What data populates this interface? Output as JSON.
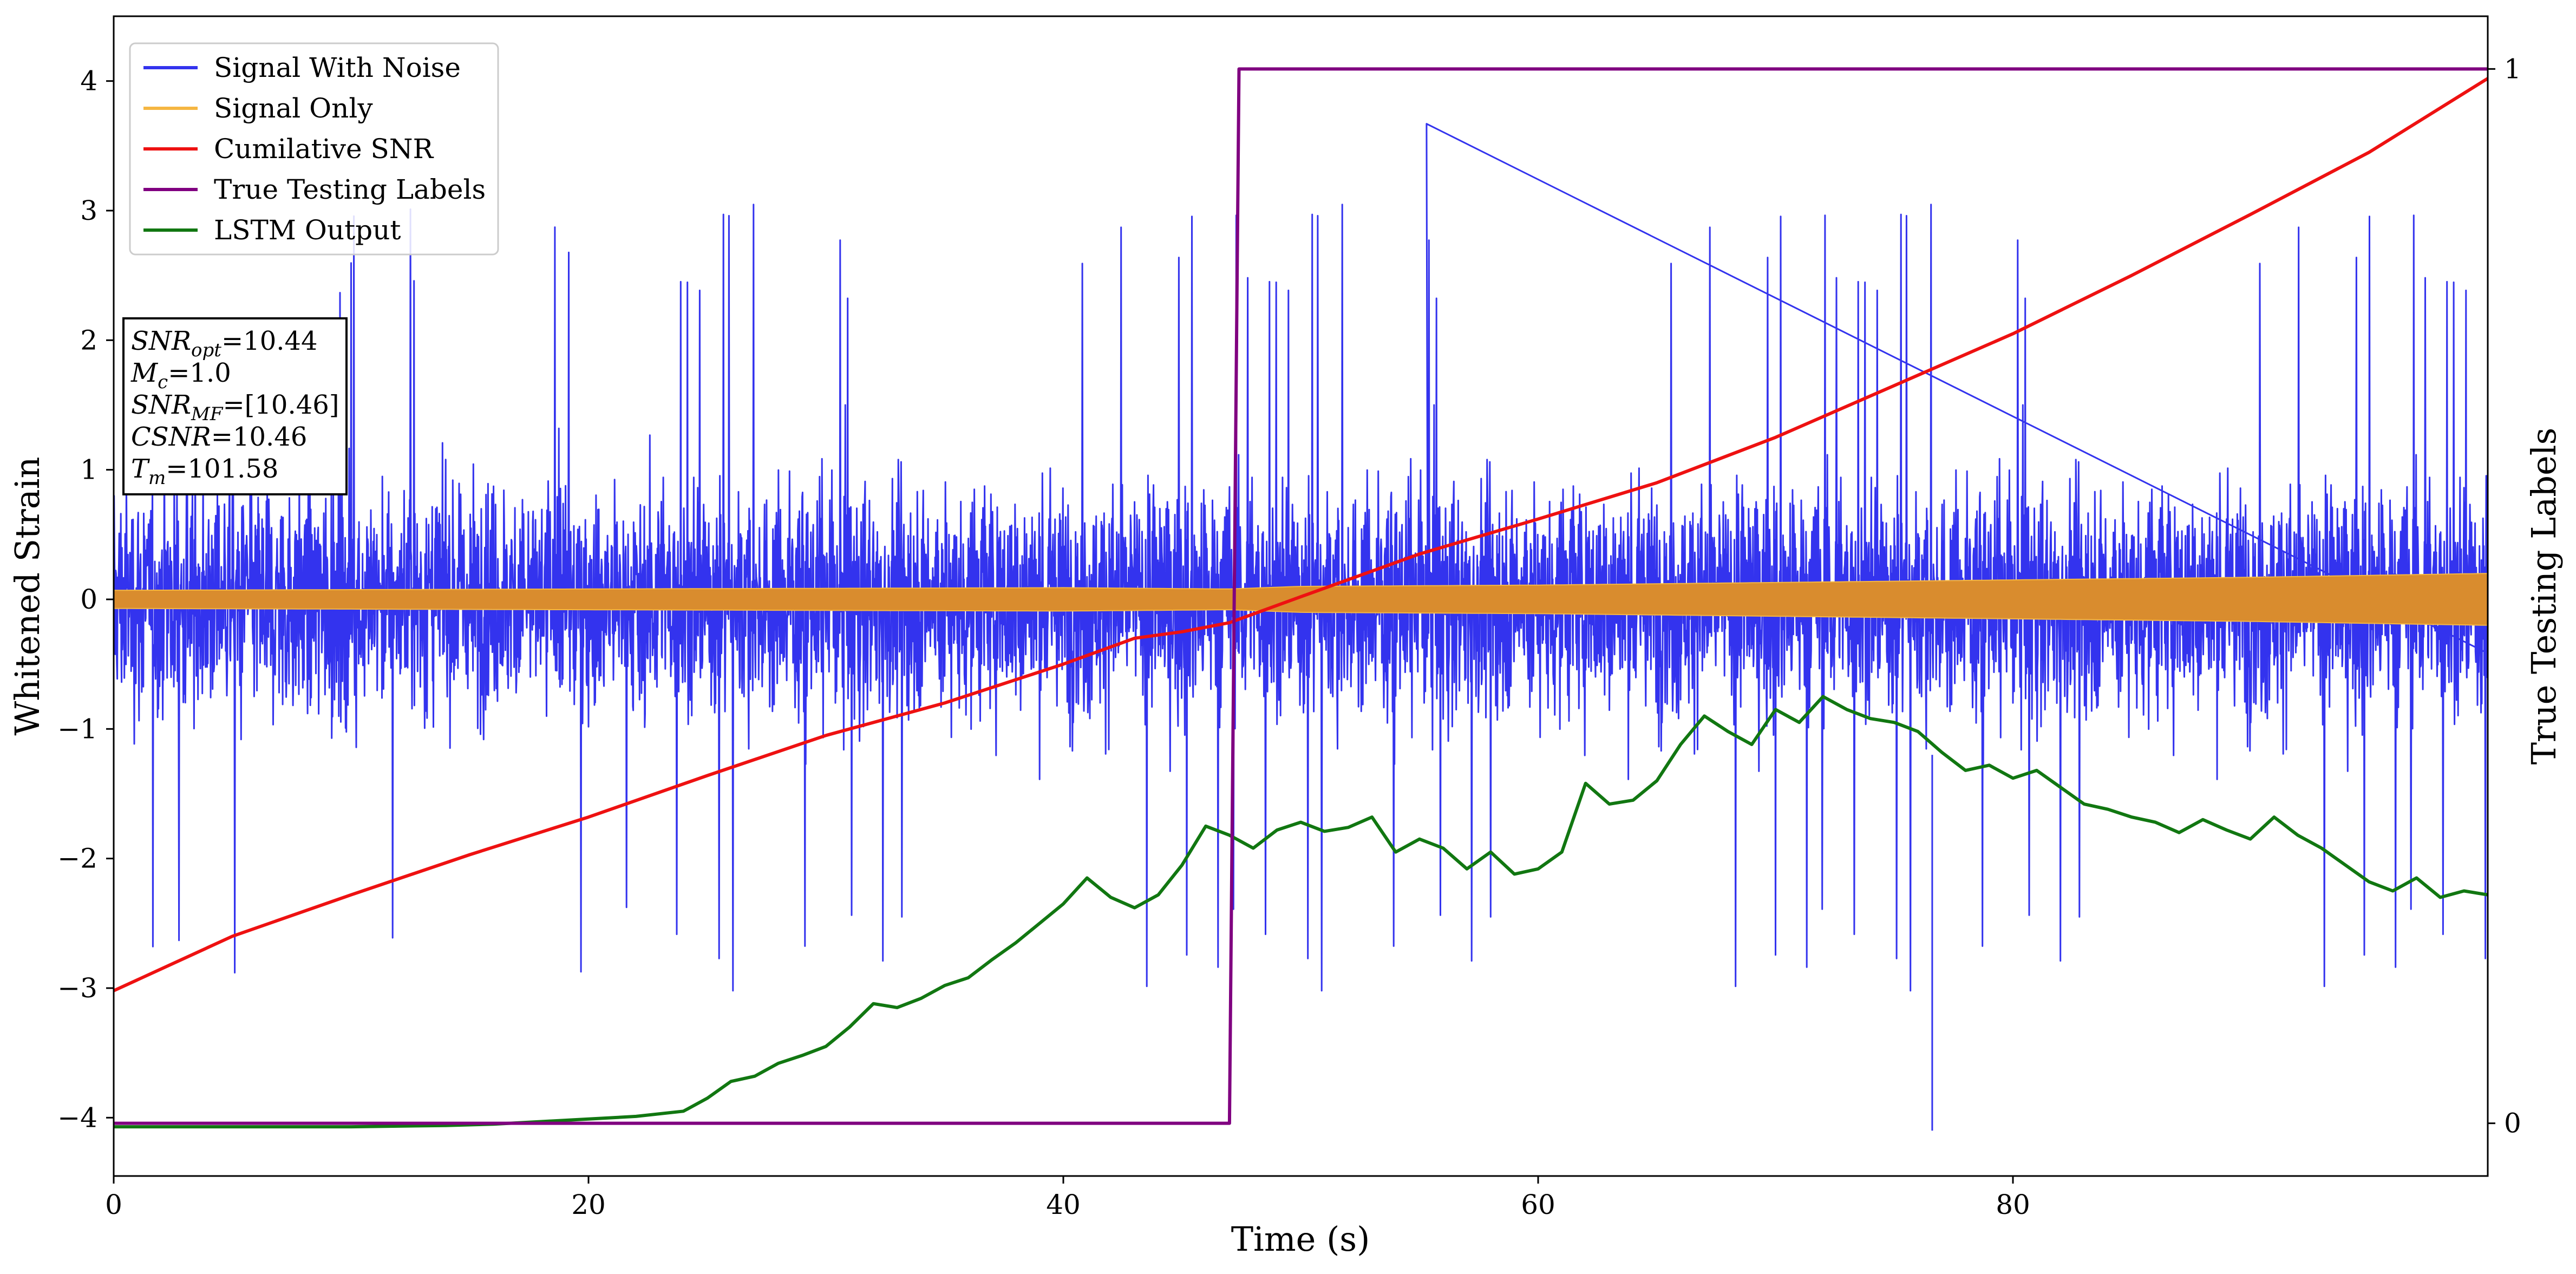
{
  "chart_data": {
    "type": "line",
    "xlabel": "Time (s)",
    "ylabel_left": "Whitened Strain",
    "ylabel_right": "True Testing Labels",
    "xlim": [
      0,
      100
    ],
    "ylim_left": [
      -4.45,
      4.5
    ],
    "ylim_right": [
      -0.05,
      1.05
    ],
    "x_ticks": [
      0,
      20,
      40,
      60,
      80
    ],
    "y_ticks_left": [
      -4,
      -3,
      -2,
      -1,
      0,
      1,
      2,
      3,
      4
    ],
    "y_ticks_right": [
      0,
      1
    ],
    "legend_position": "upper-left",
    "legend": [
      {
        "name": "Signal With Noise",
        "color": "#3333ee"
      },
      {
        "name": "Signal Only",
        "color": "#f5b642"
      },
      {
        "name": "Cumilative SNR",
        "color": "#ee1111"
      },
      {
        "name": "True Testing Labels",
        "color": "#800080"
      },
      {
        "name": "LSTM Output",
        "color": "#117711"
      }
    ],
    "annotation": [
      {
        "base": "SNR",
        "sub": "opt",
        "rest": "=10.44"
      },
      {
        "base": "M",
        "sub": "c",
        "rest": "=1.0"
      },
      {
        "base": "SNR",
        "sub": "MF",
        "rest": "=[10.46]"
      },
      {
        "base": "CSNR",
        "sub": "",
        "rest": "=10.46"
      },
      {
        "base": "T",
        "sub": "m",
        "rest": "=101.58"
      }
    ],
    "series": {
      "signal_with_noise": {
        "description": "whitened noisy strain, dense oscillation approximately spanning -2.5 to 2.5 with spikes",
        "max_spike": 3.67,
        "min_spike": -4.1
      },
      "signal_only": {
        "envelope_x": [
          0,
          20,
          40,
          47,
          50,
          60,
          70,
          80,
          90,
          100
        ],
        "envelope_half_width": [
          0.07,
          0.08,
          0.09,
          0.08,
          0.1,
          0.11,
          0.13,
          0.15,
          0.17,
          0.2
        ]
      },
      "cumulative_snr": {
        "x": [
          0,
          5,
          10,
          15,
          20,
          25,
          30,
          35,
          40,
          43,
          45,
          47,
          50,
          55,
          60,
          65,
          70,
          75,
          80,
          85,
          90,
          95,
          100
        ],
        "y": [
          -3.02,
          -2.6,
          -2.28,
          -1.97,
          -1.68,
          -1.36,
          -1.05,
          -0.8,
          -0.5,
          -0.3,
          -0.25,
          -0.18,
          0.02,
          0.35,
          0.62,
          0.9,
          1.25,
          1.65,
          2.05,
          2.5,
          2.97,
          3.45,
          4.02
        ]
      },
      "true_testing_labels": {
        "x": [
          0,
          47.0,
          47.4,
          100
        ],
        "y": [
          0,
          0,
          1,
          1
        ]
      },
      "lstm_output": {
        "x": [
          0,
          10,
          14,
          16,
          18,
          20,
          22,
          24,
          25,
          26,
          27,
          28,
          29,
          30,
          31,
          32,
          33,
          34,
          35,
          36,
          37,
          38,
          39,
          40,
          41,
          42,
          43,
          44,
          45,
          46,
          47,
          48,
          49,
          50,
          51,
          52,
          53,
          54,
          55,
          56,
          57,
          58,
          59,
          60,
          61,
          62,
          63,
          64,
          65,
          66,
          67,
          68,
          69,
          70,
          71,
          72,
          73,
          74,
          75,
          76,
          77,
          78,
          79,
          80,
          81,
          82,
          83,
          84,
          85,
          86,
          87,
          88,
          89,
          90,
          91,
          92,
          93,
          94,
          95,
          96,
          97,
          98,
          99,
          100
        ],
        "y": [
          -4.07,
          -4.07,
          -4.06,
          -4.05,
          -4.03,
          -4.01,
          -3.99,
          -3.95,
          -3.85,
          -3.72,
          -3.68,
          -3.58,
          -3.52,
          -3.45,
          -3.3,
          -3.12,
          -3.15,
          -3.08,
          -2.98,
          -2.92,
          -2.78,
          -2.65,
          -2.5,
          -2.35,
          -2.15,
          -2.3,
          -2.38,
          -2.28,
          -2.05,
          -1.75,
          -1.82,
          -1.92,
          -1.78,
          -1.72,
          -1.79,
          -1.76,
          -1.68,
          -1.95,
          -1.85,
          -1.92,
          -2.08,
          -1.95,
          -2.12,
          -2.08,
          -1.95,
          -1.42,
          -1.58,
          -1.55,
          -1.4,
          -1.12,
          -0.9,
          -1.02,
          -1.12,
          -0.85,
          -0.95,
          -0.75,
          -0.85,
          -0.92,
          -0.95,
          -1.02,
          -1.18,
          -1.32,
          -1.28,
          -1.38,
          -1.32,
          -1.45,
          -1.58,
          -1.62,
          -1.68,
          -1.72,
          -1.8,
          -1.7,
          -1.78,
          -1.85,
          -1.68,
          -1.82,
          -1.92,
          -2.05,
          -2.18,
          -2.25,
          -2.15,
          -2.3,
          -2.25,
          -2.28
        ]
      }
    }
  }
}
